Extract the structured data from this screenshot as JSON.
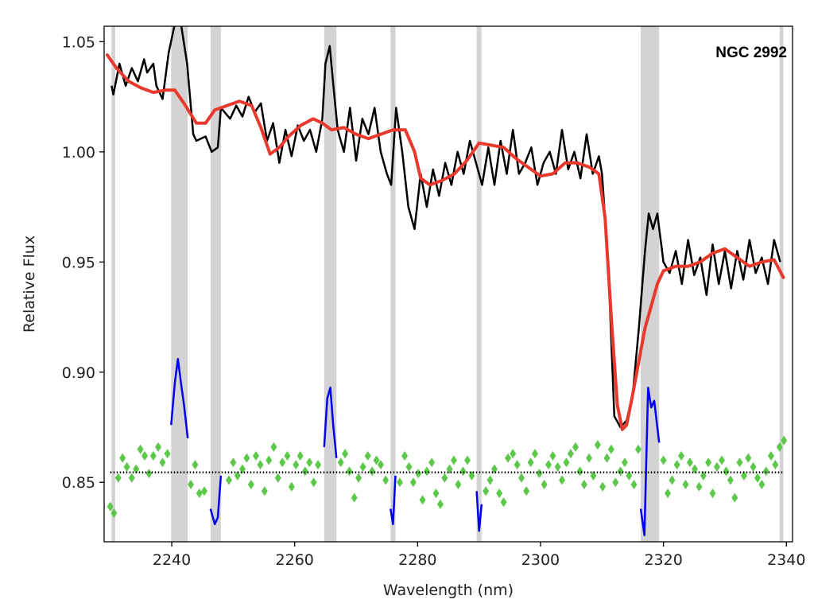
{
  "chart_data": {
    "type": "line",
    "title": "",
    "annotation": "NGC 2992",
    "xlabel": "Wavelength (nm)",
    "ylabel": "Relative Flux",
    "xlim": [
      2229,
      2341
    ],
    "ylim": [
      0.823,
      1.057
    ],
    "xticks": [
      "2240",
      "2260",
      "2280",
      "2300",
      "2320",
      "2340"
    ],
    "xtick_values": [
      2240,
      2260,
      2280,
      2300,
      2320,
      2340
    ],
    "yticks": [
      "0.85",
      "0.90",
      "0.95",
      "1.00",
      "1.05"
    ],
    "ytick_values": [
      0.85,
      0.9,
      0.95,
      1.0,
      1.05
    ],
    "grid": false,
    "masked_regions": [
      [
        2230.2,
        2230.8
      ],
      [
        2239.9,
        2242.6
      ],
      [
        2246.3,
        2248.0
      ],
      [
        2264.8,
        2266.8
      ],
      [
        2275.6,
        2276.4
      ],
      [
        2289.6,
        2290.4
      ],
      [
        2316.3,
        2319.3
      ],
      [
        2338.9,
        2339.5
      ]
    ],
    "series": [
      {
        "role": "observed",
        "color": "#000000",
        "x": [
          2230.2,
          2230.5,
          2231.5,
          2232.5,
          2233.5,
          2234.5,
          2235.5,
          2236.0,
          2237.0,
          2237.5,
          2238.5,
          2239.5,
          2240.5,
          2241.5,
          2242.5,
          2243.5,
          2244.0,
          2245.5,
          2246.5,
          2247.5,
          2248.0,
          2249.5,
          2250.5,
          2251.5,
          2252.5,
          2253.5,
          2254.5,
          2255.5,
          2256.5,
          2257.5,
          2258.5,
          2259.5,
          2260.5,
          2261.5,
          2262.5,
          2263.5,
          2264.5,
          2265.0,
          2265.7,
          2266.3,
          2267.0,
          2268.0,
          2269.0,
          2270.0,
          2271.0,
          2272.0,
          2273.0,
          2274.0,
          2275.0,
          2275.7,
          2276.5,
          2277.5,
          2278.5,
          2279.5,
          2280.5,
          2281.5,
          2282.5,
          2283.5,
          2284.5,
          2285.5,
          2286.5,
          2287.5,
          2288.5,
          2289.5,
          2290.5,
          2291.5,
          2292.5,
          2293.5,
          2294.5,
          2295.5,
          2296.5,
          2297.5,
          2298.5,
          2299.5,
          2300.5,
          2301.5,
          2302.5,
          2303.5,
          2304.5,
          2305.5,
          2306.5,
          2307.5,
          2308.5,
          2309.5,
          2310.0,
          2311.0,
          2312.0,
          2313.0,
          2314.0,
          2315.0,
          2316.0,
          2317.0,
          2317.6,
          2318.3,
          2319.0,
          2320.0,
          2321.0,
          2322.0,
          2323.0,
          2324.0,
          2325.0,
          2326.0,
          2327.0,
          2328.0,
          2329.0,
          2330.0,
          2331.0,
          2332.0,
          2333.0,
          2334.0,
          2335.0,
          2336.0,
          2337.0,
          2338.0,
          2339.0
        ],
        "y": [
          1.03,
          1.026,
          1.04,
          1.03,
          1.038,
          1.032,
          1.042,
          1.036,
          1.04,
          1.03,
          1.024,
          1.045,
          1.058,
          1.058,
          1.04,
          1.008,
          1.005,
          1.007,
          1.0,
          1.002,
          1.02,
          1.015,
          1.021,
          1.016,
          1.025,
          1.018,
          1.022,
          1.005,
          1.013,
          0.995,
          1.01,
          0.998,
          1.012,
          1.005,
          1.01,
          1.0,
          1.015,
          1.04,
          1.048,
          1.03,
          1.01,
          1.0,
          1.02,
          0.996,
          1.015,
          1.008,
          1.02,
          1.0,
          0.99,
          0.985,
          1.02,
          1.0,
          0.975,
          0.965,
          0.99,
          0.975,
          0.992,
          0.98,
          0.995,
          0.985,
          1.0,
          0.99,
          1.005,
          0.995,
          0.985,
          1.002,
          0.985,
          1.005,
          0.99,
          1.01,
          0.99,
          0.995,
          1.002,
          0.985,
          0.995,
          1.0,
          0.99,
          1.01,
          0.992,
          1.0,
          0.988,
          1.008,
          0.99,
          0.998,
          0.99,
          0.95,
          0.88,
          0.875,
          0.878,
          0.89,
          0.92,
          0.955,
          0.972,
          0.965,
          0.972,
          0.95,
          0.945,
          0.955,
          0.94,
          0.96,
          0.944,
          0.952,
          0.935,
          0.958,
          0.94,
          0.955,
          0.938,
          0.955,
          0.942,
          0.96,
          0.945,
          0.952,
          0.94,
          0.96,
          0.95
        ],
        "name": ""
      },
      {
        "role": "model-fit",
        "color": "#e8392c",
        "x": [
          2229.5,
          2231,
          2233,
          2235,
          2237,
          2239,
          2240.5,
          2242,
          2244,
          2245.5,
          2247,
          2249,
          2251,
          2253,
          2254.5,
          2256,
          2257.5,
          2259,
          2261,
          2263,
          2264.5,
          2266,
          2268,
          2270,
          2272,
          2274,
          2276,
          2278,
          2279.5,
          2280.5,
          2282,
          2284,
          2286,
          2288,
          2290,
          2292,
          2294,
          2296,
          2298,
          2300,
          2302,
          2304,
          2306,
          2308,
          2309.5,
          2310.5,
          2311.5,
          2312.5,
          2313.3,
          2314,
          2315,
          2316,
          2317,
          2318,
          2319,
          2320,
          2322,
          2324,
          2326,
          2328,
          2330,
          2332,
          2334,
          2336,
          2338,
          2339.5
        ],
        "y": [
          1.044,
          1.038,
          1.032,
          1.029,
          1.027,
          1.028,
          1.028,
          1.022,
          1.013,
          1.013,
          1.019,
          1.021,
          1.023,
          1.021,
          1.011,
          0.999,
          1.002,
          1.007,
          1.012,
          1.015,
          1.013,
          1.01,
          1.011,
          1.008,
          1.006,
          1.008,
          1.01,
          1.01,
          1.0,
          0.988,
          0.985,
          0.987,
          0.99,
          0.996,
          1.004,
          1.003,
          1.002,
          0.997,
          0.993,
          0.989,
          0.99,
          0.995,
          0.995,
          0.993,
          0.99,
          0.97,
          0.925,
          0.885,
          0.874,
          0.876,
          0.89,
          0.905,
          0.92,
          0.93,
          0.94,
          0.946,
          0.948,
          0.948,
          0.95,
          0.954,
          0.956,
          0.952,
          0.948,
          0.95,
          0.951,
          0.943
        ],
        "name": ""
      },
      {
        "role": "residual-in-mask",
        "color": "#0000ee",
        "segments": [
          {
            "x": [
              2239.9,
              2240.5,
              2241.0,
              2241.5,
              2242.0,
              2242.6
            ],
            "y": [
              0.876,
              0.895,
              0.906,
              0.895,
              0.885,
              0.87
            ]
          },
          {
            "x": [
              2246.3,
              2247.0,
              2247.5,
              2248.0
            ],
            "y": [
              0.838,
              0.831,
              0.834,
              0.853
            ]
          },
          {
            "x": [
              2264.8,
              2265.3,
              2265.8,
              2266.3,
              2266.8
            ],
            "y": [
              0.866,
              0.888,
              0.893,
              0.875,
              0.861
            ]
          },
          {
            "x": [
              2275.6,
              2276.0,
              2276.4
            ],
            "y": [
              0.838,
              0.831,
              0.853
            ]
          },
          {
            "x": [
              2289.6,
              2290.0,
              2290.4
            ],
            "y": [
              0.846,
              0.828,
              0.84
            ]
          },
          {
            "x": [
              2316.3,
              2316.9,
              2317.5,
              2318.0,
              2318.5,
              2319.3
            ],
            "y": [
              0.838,
              0.826,
              0.893,
              0.884,
              0.887,
              0.868
            ]
          }
        ],
        "name": ""
      },
      {
        "role": "residuals",
        "color": "#5cc84a",
        "type": "scatter",
        "x": [
          2230.0,
          2230.6,
          2231.3,
          2232.0,
          2232.7,
          2233.5,
          2234.2,
          2234.9,
          2235.6,
          2236.3,
          2237.0,
          2237.8,
          2238.5,
          2239.3,
          2243.1,
          2243.8,
          2244.5,
          2245.3,
          2249.3,
          2250.0,
          2250.7,
          2251.5,
          2252.2,
          2252.9,
          2253.7,
          2254.4,
          2255.1,
          2255.8,
          2256.6,
          2257.3,
          2258.0,
          2258.8,
          2259.5,
          2260.2,
          2260.9,
          2261.7,
          2262.4,
          2263.1,
          2263.8,
          2267.5,
          2268.2,
          2268.9,
          2269.7,
          2270.4,
          2271.1,
          2271.9,
          2272.6,
          2273.3,
          2274.0,
          2274.8,
          2277.1,
          2277.9,
          2278.6,
          2279.3,
          2280.1,
          2280.8,
          2281.5,
          2282.3,
          2283.0,
          2283.7,
          2284.4,
          2285.2,
          2285.9,
          2286.6,
          2287.4,
          2288.1,
          2288.8,
          2291.1,
          2291.8,
          2292.5,
          2293.3,
          2294.0,
          2294.7,
          2295.5,
          2296.2,
          2296.9,
          2297.7,
          2298.4,
          2299.1,
          2299.8,
          2300.6,
          2301.3,
          2302.0,
          2302.8,
          2303.5,
          2304.2,
          2304.9,
          2305.7,
          2306.4,
          2307.1,
          2307.9,
          2308.6,
          2309.3,
          2310.1,
          2310.8,
          2311.5,
          2312.2,
          2313.0,
          2313.7,
          2314.4,
          2315.2,
          2315.9,
          2320.0,
          2320.7,
          2321.4,
          2322.2,
          2322.9,
          2323.6,
          2324.3,
          2325.1,
          2325.8,
          2326.5,
          2327.3,
          2328.0,
          2328.7,
          2329.5,
          2330.2,
          2330.9,
          2331.6,
          2332.4,
          2333.1,
          2333.8,
          2334.6,
          2335.3,
          2336.0,
          2336.7,
          2337.5,
          2338.2,
          2338.9,
          2339.6
        ],
        "y": [
          0.839,
          0.836,
          0.852,
          0.861,
          0.857,
          0.852,
          0.856,
          0.865,
          0.862,
          0.854,
          0.862,
          0.866,
          0.859,
          0.863,
          0.849,
          0.858,
          0.845,
          0.846,
          0.851,
          0.859,
          0.853,
          0.856,
          0.861,
          0.849,
          0.862,
          0.858,
          0.846,
          0.86,
          0.866,
          0.852,
          0.859,
          0.862,
          0.848,
          0.858,
          0.862,
          0.855,
          0.859,
          0.85,
          0.858,
          0.859,
          0.863,
          0.855,
          0.843,
          0.852,
          0.857,
          0.862,
          0.855,
          0.86,
          0.858,
          0.851,
          0.85,
          0.862,
          0.857,
          0.85,
          0.854,
          0.842,
          0.855,
          0.859,
          0.845,
          0.84,
          0.852,
          0.856,
          0.86,
          0.849,
          0.855,
          0.86,
          0.853,
          0.846,
          0.851,
          0.856,
          0.845,
          0.841,
          0.861,
          0.863,
          0.858,
          0.852,
          0.846,
          0.859,
          0.863,
          0.854,
          0.849,
          0.858,
          0.862,
          0.857,
          0.851,
          0.859,
          0.863,
          0.866,
          0.855,
          0.849,
          0.861,
          0.853,
          0.867,
          0.848,
          0.861,
          0.865,
          0.85,
          0.855,
          0.859,
          0.853,
          0.849,
          0.865,
          0.86,
          0.845,
          0.851,
          0.858,
          0.862,
          0.849,
          0.859,
          0.856,
          0.848,
          0.853,
          0.859,
          0.845,
          0.857,
          0.86,
          0.855,
          0.851,
          0.843,
          0.859,
          0.853,
          0.861,
          0.857,
          0.852,
          0.849,
          0.855,
          0.862,
          0.858,
          0.866,
          0.869
        ],
        "name": ""
      },
      {
        "role": "zero-line",
        "color": "#000000",
        "y_value": 0.8545,
        "dotted": true,
        "name": ""
      }
    ]
  }
}
